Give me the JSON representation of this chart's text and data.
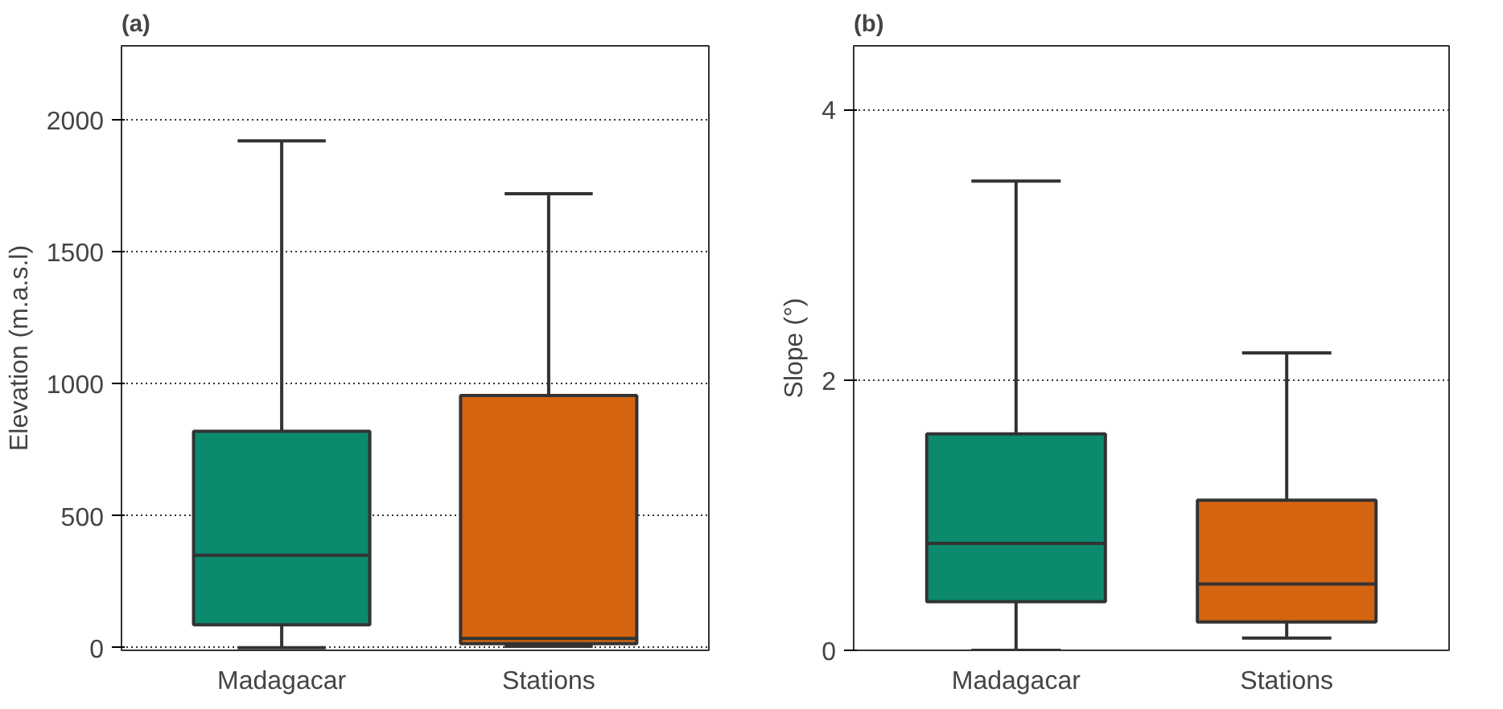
{
  "chart_data": [
    {
      "type": "box",
      "title": "(a)",
      "ylabel": "Elevation (m.a.s.l)",
      "categories": [
        "Madagacar",
        "Stations"
      ],
      "colors": [
        "#0b8a6e",
        "#d4640f"
      ],
      "boxes": [
        {
          "low": 0,
          "q1": 87,
          "median": 350,
          "q3": 820,
          "high": 1920
        },
        {
          "low": 5,
          "q1": 15,
          "median": 35,
          "q3": 955,
          "high": 1720
        }
      ],
      "ylim": [
        -10,
        2280
      ],
      "yticks": [
        0,
        500,
        1000,
        1500,
        2000
      ],
      "grid": "y"
    },
    {
      "type": "box",
      "title": "(b)",
      "ylabel": "Slope (°)",
      "categories": [
        "Madagacar",
        "Stations"
      ],
      "colors": [
        "#0b8a6e",
        "#d4640f"
      ],
      "boxes": [
        {
          "low": 0,
          "q1": 0.36,
          "median": 0.79,
          "q3": 1.6,
          "high": 3.47
        },
        {
          "low": 0.09,
          "q1": 0.21,
          "median": 0.49,
          "q3": 1.11,
          "high": 2.2
        }
      ],
      "ylim": [
        0,
        4.47
      ],
      "yticks": [
        0,
        2,
        4
      ],
      "grid": "y"
    }
  ]
}
